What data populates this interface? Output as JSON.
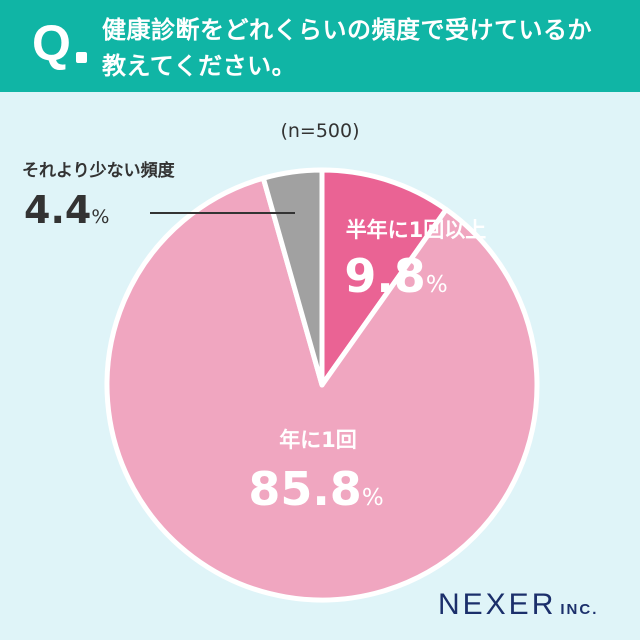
{
  "question": {
    "mark": "Q",
    "lines": [
      "健康診断をどれくらいの頻度で受けているか",
      "教えてください。"
    ]
  },
  "sample_size": "(n=500)",
  "logo": {
    "main": "NEXER",
    "sub": "INC."
  },
  "colors": {
    "header": "#10b5a5",
    "background": "#dff4f8",
    "slice_half_year": "#ea6394",
    "slice_yearly": "#f0a6c0",
    "slice_less": "#a1a1a1",
    "logo": "#1b2f6b"
  },
  "chart_data": {
    "type": "pie",
    "title": "",
    "start": "top, clockwise",
    "slices": [
      {
        "label": "半年に1回以上",
        "value": 9.8,
        "display": "9.8",
        "unit": "%",
        "color": "#ea6394"
      },
      {
        "label": "年に1回",
        "value": 85.8,
        "display": "85.8",
        "unit": "%",
        "color": "#f0a6c0"
      },
      {
        "label": "それより少ない頻度",
        "value": 4.4,
        "display": "4.4",
        "unit": "%",
        "color": "#a1a1a1"
      }
    ]
  }
}
